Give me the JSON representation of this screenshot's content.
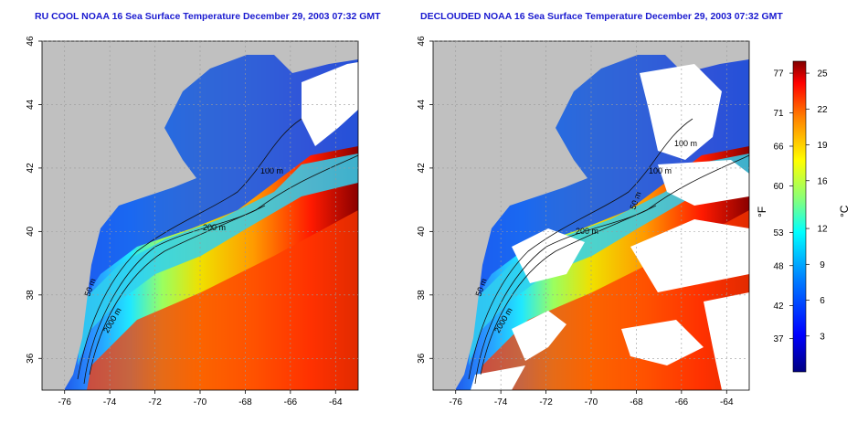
{
  "panels": [
    {
      "title": "RU COOL NOAA 16 Sea Surface Temperature December 29, 2003 07:32 GMT",
      "variant": "cloudy-filled"
    },
    {
      "title": "DECLOUDED NOAA 16 Sea Surface Temperature December 29, 2003 07:32 GMT",
      "variant": "declouded"
    }
  ],
  "axes": {
    "x_ticks": [
      "-76",
      "-74",
      "-72",
      "-70",
      "-68",
      "-66",
      "-64"
    ],
    "y_ticks": [
      "36",
      "38",
      "40",
      "42",
      "44",
      "46"
    ],
    "x_range": [
      -77,
      -63
    ],
    "y_range": [
      35,
      46
    ]
  },
  "contour_labels": [
    "200 m",
    "50 m",
    "2000 m",
    "100 m",
    "100 m",
    "50 m"
  ],
  "colorbar": {
    "fahrenheit_label": "°F",
    "celsius_label": "°C",
    "fahrenheit_ticks": [
      "77",
      "71",
      "66",
      "60",
      "53",
      "48",
      "42",
      "37"
    ],
    "celsius_ticks": [
      "25",
      "22",
      "19",
      "16",
      "12",
      "9",
      "6",
      "3"
    ],
    "celsius_range": [
      0,
      26
    ],
    "colors": [
      "#000080",
      "#0000ff",
      "#0080ff",
      "#00ffff",
      "#80ff80",
      "#ffff00",
      "#ff8000",
      "#ff0000",
      "#800000"
    ]
  },
  "colors": {
    "land": "#c0c0c0",
    "cloud": "#ffffff",
    "title": "#1a1ad0"
  }
}
